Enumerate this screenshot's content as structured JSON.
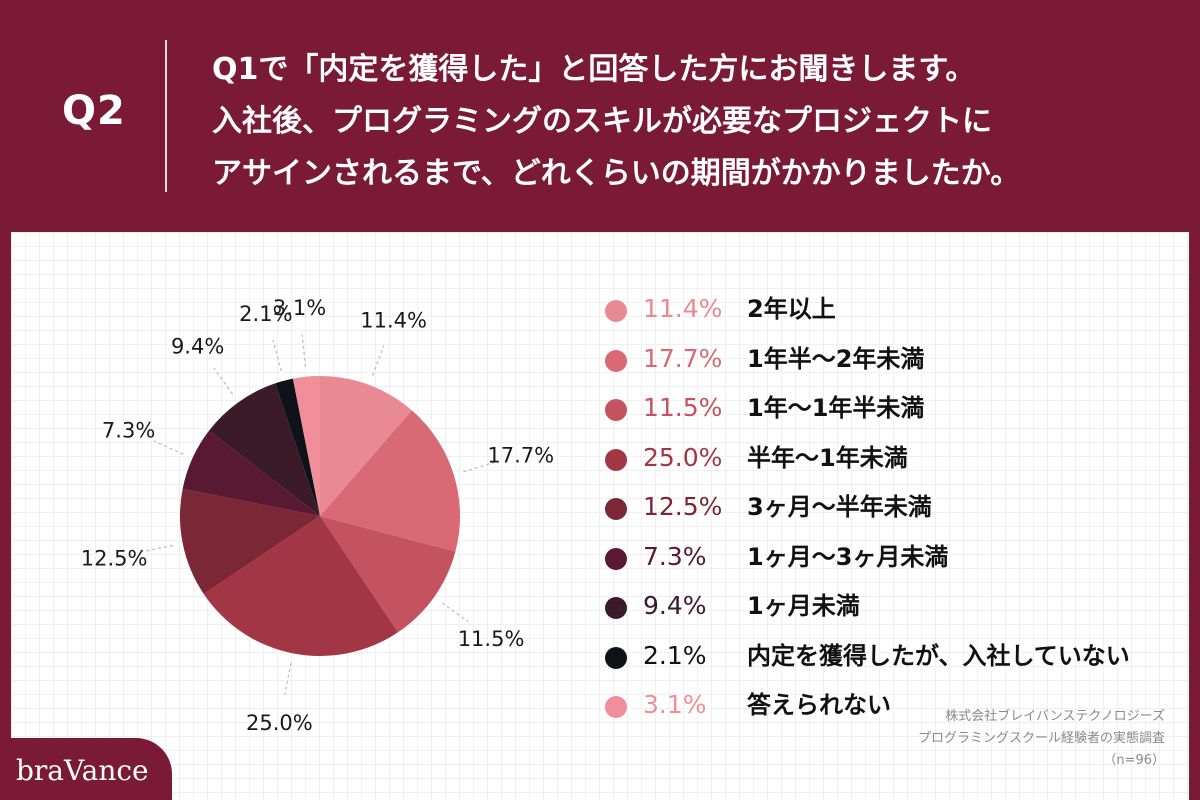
{
  "header": {
    "q_label": "Q2",
    "question_lines": [
      "Q1で「内定を獲得した」と回答した方にお聞きします。",
      "入社後、プログラミングのスキルが必要なプロジェクトに",
      "アサインされるまで、どれくらいの期間がかかりましたか。"
    ]
  },
  "chart_data": {
    "type": "pie",
    "start_angle_deg": 0,
    "direction": "clockwise",
    "slices": [
      {
        "label": "2年以上",
        "value": 11.4,
        "value_label": "11.4%",
        "color": "#e98a92"
      },
      {
        "label": "1年半〜2年未満",
        "value": 17.7,
        "value_label": "17.7%",
        "color": "#d86975"
      },
      {
        "label": "1年〜1年半未満",
        "value": 11.5,
        "value_label": "11.5%",
        "color": "#c4535f"
      },
      {
        "label": "半年〜1年未満",
        "value": 25.0,
        "value_label": "25.0%",
        "color": "#a33645"
      },
      {
        "label": "3ヶ月〜半年未満",
        "value": 12.5,
        "value_label": "12.5%",
        "color": "#7b2735"
      },
      {
        "label": "1ヶ月〜3ヶ月未満",
        "value": 7.3,
        "value_label": "7.3%",
        "color": "#5a1932"
      },
      {
        "label": "1ヶ月未満",
        "value": 9.4,
        "value_label": "9.4%",
        "color": "#3b1a2a"
      },
      {
        "label": "内定を獲得したが、入社していない",
        "value": 2.1,
        "value_label": "2.1%",
        "color": "#0f1218"
      },
      {
        "label": "答えられない",
        "value": 3.1,
        "value_label": "3.1%",
        "color": "#f08f99"
      }
    ],
    "legend_placement": "right"
  },
  "source": {
    "line1": "株式会社ブレイバンステクノロジーズ",
    "line2": "プログラミングスクール経験者の実態調査",
    "line3": "（n=96）"
  },
  "brand": "braVance"
}
